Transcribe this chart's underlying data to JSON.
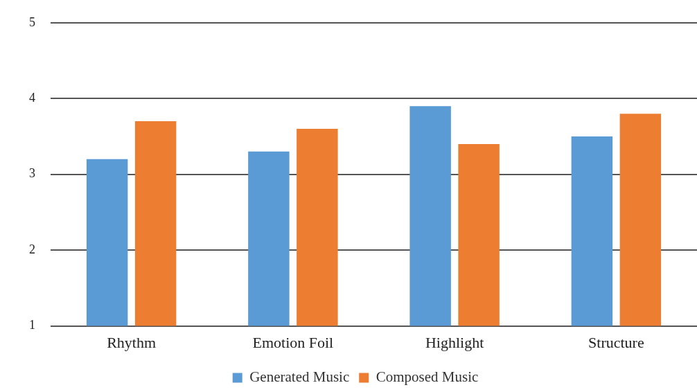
{
  "chart_data": {
    "type": "bar",
    "categories": [
      "Rhythm",
      "Emotion Foil",
      "Highlight",
      "Structure"
    ],
    "series": [
      {
        "name": "Generated Music",
        "color": "#5b9bd5",
        "values": [
          3.2,
          3.3,
          3.9,
          3.5
        ]
      },
      {
        "name": "Composed Music",
        "color": "#ed7d31",
        "values": [
          3.7,
          3.6,
          3.4,
          3.8
        ]
      }
    ],
    "ylim": [
      1,
      5
    ],
    "yticks": [
      1,
      2,
      3,
      4,
      5
    ],
    "grid": "y",
    "legend": "bottom"
  }
}
